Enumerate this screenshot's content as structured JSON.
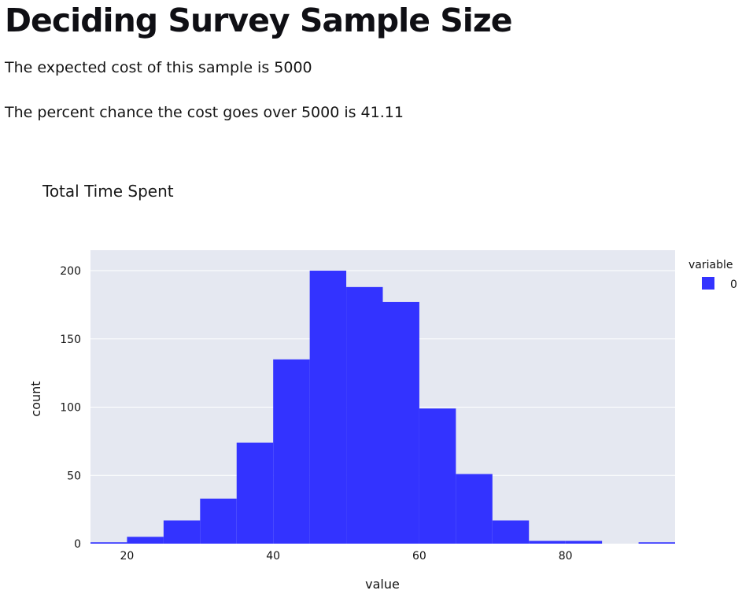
{
  "page": {
    "title": "Deciding Survey Sample Size",
    "expected_cost_text": "The expected cost of this sample is 5000",
    "chance_text": "The percent chance the cost goes over 5000 is 41.11"
  },
  "chart_data": {
    "type": "bar",
    "subtype": "histogram",
    "title": "Total Time Spent",
    "xlabel": "value",
    "ylabel": "count",
    "bin_width": 5,
    "bin_starts": [
      15,
      20,
      25,
      30,
      35,
      40,
      45,
      50,
      55,
      60,
      65,
      70,
      75,
      80,
      85,
      90
    ],
    "values": [
      1,
      5,
      17,
      33,
      74,
      135,
      200,
      188,
      177,
      99,
      51,
      17,
      2,
      2,
      0,
      1
    ],
    "xlim": [
      15,
      95
    ],
    "ylim": [
      0,
      215
    ],
    "x_ticks": [
      "20",
      "40",
      "60",
      "80"
    ],
    "y_ticks": [
      "0",
      "50",
      "100",
      "150",
      "200"
    ],
    "grid": true,
    "legend": {
      "title": "variable",
      "placement": "top-right",
      "entries": [
        {
          "name": "0",
          "color": "#3333ff"
        }
      ]
    },
    "colors": {
      "bar": "#3333ff",
      "plot_background": "#e5e8f1",
      "grid": "#ffffff"
    }
  }
}
